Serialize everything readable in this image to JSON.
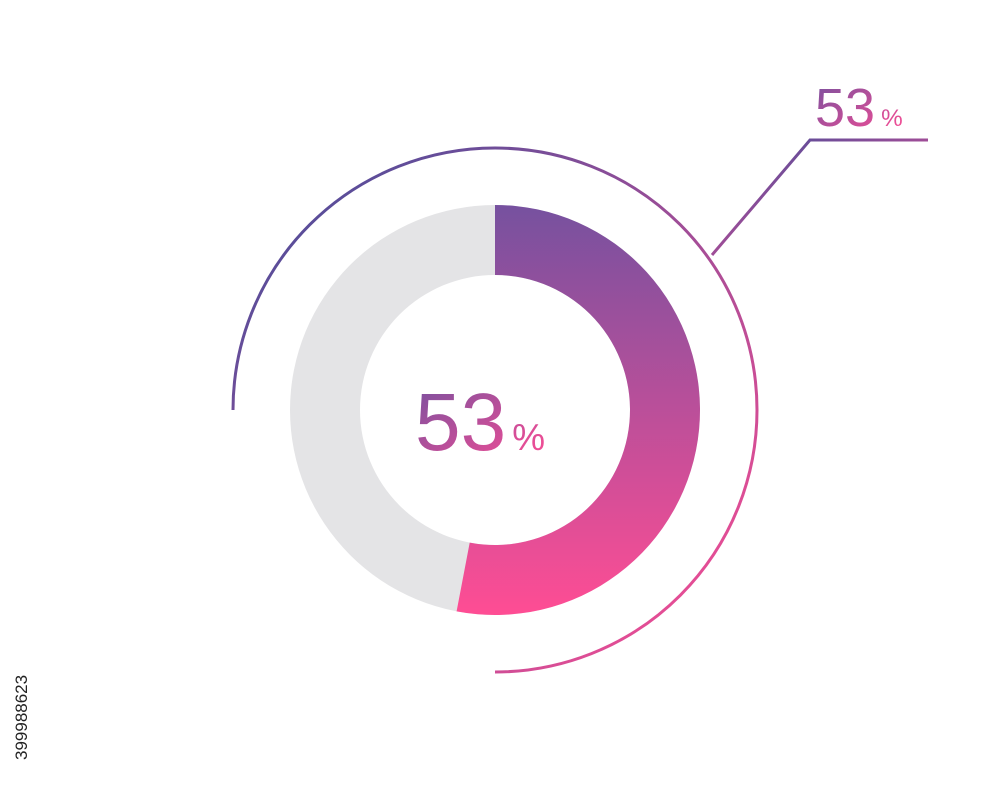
{
  "chart_data": {
    "type": "donut",
    "values": [
      53
    ],
    "value_labels": [
      "53"
    ],
    "unit": "%",
    "gradient": [
      "#76519f",
      "#ff4d94"
    ],
    "ring_color": "#e4e4e6",
    "outer_gradient": [
      "#3f4d9a",
      "#ff4d94"
    ]
  },
  "watermark": "399988623"
}
